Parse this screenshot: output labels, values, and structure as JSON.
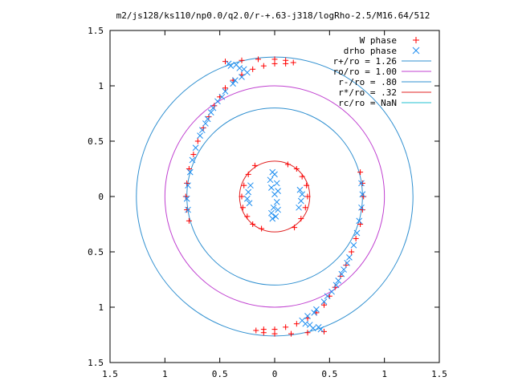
{
  "chart_data": {
    "type": "scatter",
    "title": "m2/js128/ks110/np0.0/q2.0/r-+.63-j318/logRho-2.5/M16.64/512",
    "xlim": [
      -1.5,
      1.5
    ],
    "ylim": [
      -1.5,
      1.5
    ],
    "x_ticks": [
      -1.5,
      -1.0,
      -0.5,
      0,
      0.5,
      1.0,
      1.5
    ],
    "x_tick_labels": [
      "1.5",
      "1",
      "0.5",
      "0",
      "0.5",
      "1",
      "1.5"
    ],
    "y_ticks": [
      1.5,
      1.0,
      0.5,
      0,
      -0.5,
      -1.0,
      -1.5
    ],
    "y_tick_labels": [
      "1.5",
      "1",
      "0.5",
      "0",
      "0.5",
      "1",
      "1.5"
    ],
    "grid": false,
    "legend_position": "top-right",
    "legend": [
      {
        "label": "W phase",
        "marker": "plus",
        "color": "#ff0000"
      },
      {
        "label": "drho phase",
        "marker": "cross",
        "color": "#1f8ef0"
      },
      {
        "label": "r+/ro = 1.26",
        "marker": "line",
        "color": "#2f8fd0"
      },
      {
        "label": "ro/ro = 1.00",
        "marker": "line",
        "color": "#c040d0"
      },
      {
        "label": "r-/ro = .80",
        "marker": "line",
        "color": "#2f8fd0"
      },
      {
        "label": "r*/ro = .32",
        "marker": "line",
        "color": "#e02020"
      },
      {
        "label": "rc/ro = NaN",
        "marker": "line",
        "color": "#20c0d0"
      }
    ],
    "circles": [
      {
        "name": "r+/ro",
        "radius": 1.26,
        "color": "#2f8fd0"
      },
      {
        "name": "ro/ro",
        "radius": 1.0,
        "color": "#c040d0"
      },
      {
        "name": "r-/ro",
        "radius": 0.8,
        "color": "#2f8fd0"
      },
      {
        "name": "r*/ro",
        "radius": 0.32,
        "color": "#e02020"
      }
    ],
    "series": [
      {
        "name": "W phase",
        "marker": "plus",
        "color": "#ff0000",
        "points": [
          [
            -0.45,
            1.22
          ],
          [
            -0.3,
            1.23
          ],
          [
            -0.15,
            1.24
          ],
          [
            0.0,
            1.24
          ],
          [
            0.1,
            1.23
          ],
          [
            0.17,
            1.21
          ],
          [
            0.1,
            1.2
          ],
          [
            0.0,
            1.2
          ],
          [
            -0.1,
            1.18
          ],
          [
            -0.2,
            1.15
          ],
          [
            -0.3,
            1.1
          ],
          [
            -0.38,
            1.05
          ],
          [
            -0.45,
            0.98
          ],
          [
            -0.5,
            0.9
          ],
          [
            -0.55,
            0.82
          ],
          [
            -0.6,
            0.72
          ],
          [
            -0.65,
            0.62
          ],
          [
            -0.7,
            0.5
          ],
          [
            -0.74,
            0.38
          ],
          [
            -0.78,
            0.25
          ],
          [
            -0.8,
            0.12
          ],
          [
            -0.81,
            0.0
          ],
          [
            -0.8,
            -0.12
          ],
          [
            -0.78,
            -0.22
          ],
          [
            0.45,
            -1.22
          ],
          [
            0.3,
            -1.23
          ],
          [
            0.15,
            -1.24
          ],
          [
            0.0,
            -1.24
          ],
          [
            -0.1,
            -1.23
          ],
          [
            -0.17,
            -1.21
          ],
          [
            -0.1,
            -1.2
          ],
          [
            0.0,
            -1.2
          ],
          [
            0.1,
            -1.18
          ],
          [
            0.2,
            -1.15
          ],
          [
            0.3,
            -1.1
          ],
          [
            0.38,
            -1.05
          ],
          [
            0.45,
            -0.98
          ],
          [
            0.5,
            -0.9
          ],
          [
            0.55,
            -0.82
          ],
          [
            0.6,
            -0.72
          ],
          [
            0.65,
            -0.62
          ],
          [
            0.7,
            -0.5
          ],
          [
            0.74,
            -0.38
          ],
          [
            0.78,
            -0.25
          ],
          [
            0.8,
            -0.12
          ],
          [
            0.81,
            0.0
          ],
          [
            0.8,
            0.12
          ],
          [
            0.78,
            0.22
          ],
          [
            -0.18,
            0.28
          ],
          [
            -0.24,
            0.2
          ],
          [
            -0.28,
            0.1
          ],
          [
            -0.3,
            0.0
          ],
          [
            -0.29,
            -0.1
          ],
          [
            -0.25,
            -0.18
          ],
          [
            -0.2,
            -0.25
          ],
          [
            -0.12,
            -0.29
          ],
          [
            0.18,
            -0.28
          ],
          [
            0.24,
            -0.2
          ],
          [
            0.28,
            -0.1
          ],
          [
            0.3,
            0.0
          ],
          [
            0.29,
            0.1
          ],
          [
            0.25,
            0.18
          ],
          [
            0.2,
            0.25
          ],
          [
            0.12,
            0.29
          ]
        ]
      },
      {
        "name": "drho phase",
        "marker": "cross",
        "color": "#1f8ef0",
        "points": [
          [
            -0.4,
            1.18
          ],
          [
            -0.32,
            1.16
          ],
          [
            -0.25,
            1.12
          ],
          [
            -0.3,
            1.08
          ],
          [
            -0.38,
            1.02
          ],
          [
            -0.45,
            0.95
          ],
          [
            -0.52,
            0.86
          ],
          [
            -0.58,
            0.76
          ],
          [
            -0.63,
            0.66
          ],
          [
            -0.68,
            0.55
          ],
          [
            -0.72,
            0.44
          ],
          [
            -0.75,
            0.33
          ],
          [
            -0.77,
            0.22
          ],
          [
            -0.79,
            0.1
          ],
          [
            -0.8,
            -0.02
          ],
          [
            -0.79,
            -0.12
          ],
          [
            -0.42,
            1.2
          ],
          [
            -0.35,
            1.19
          ],
          [
            -0.28,
            1.15
          ],
          [
            -0.36,
            1.05
          ],
          [
            -0.48,
            0.9
          ],
          [
            -0.56,
            0.8
          ],
          [
            -0.61,
            0.7
          ],
          [
            -0.66,
            0.6
          ],
          [
            0.4,
            -1.18
          ],
          [
            0.32,
            -1.16
          ],
          [
            0.25,
            -1.12
          ],
          [
            0.3,
            -1.08
          ],
          [
            0.38,
            -1.02
          ],
          [
            0.45,
            -0.95
          ],
          [
            0.52,
            -0.86
          ],
          [
            0.58,
            -0.76
          ],
          [
            0.63,
            -0.66
          ],
          [
            0.68,
            -0.55
          ],
          [
            0.72,
            -0.44
          ],
          [
            0.75,
            -0.33
          ],
          [
            0.77,
            -0.22
          ],
          [
            0.79,
            -0.1
          ],
          [
            0.8,
            0.02
          ],
          [
            0.79,
            0.12
          ],
          [
            0.42,
            -1.2
          ],
          [
            0.35,
            -1.19
          ],
          [
            0.28,
            -1.15
          ],
          [
            0.36,
            -1.05
          ],
          [
            0.48,
            -0.9
          ],
          [
            0.56,
            -0.8
          ],
          [
            0.61,
            -0.7
          ],
          [
            0.66,
            -0.6
          ],
          [
            -0.02,
            0.22
          ],
          [
            -0.04,
            0.15
          ],
          [
            -0.03,
            0.08
          ],
          [
            0.0,
            0.02
          ],
          [
            0.02,
            -0.05
          ],
          [
            0.03,
            -0.12
          ],
          [
            0.01,
            -0.18
          ],
          [
            -0.02,
            -0.2
          ],
          [
            -0.22,
            0.1
          ],
          [
            -0.24,
            0.04
          ],
          [
            -0.25,
            -0.02
          ],
          [
            -0.23,
            -0.06
          ],
          [
            0.22,
            -0.1
          ],
          [
            0.24,
            -0.04
          ],
          [
            0.25,
            0.02
          ],
          [
            0.23,
            0.06
          ],
          [
            0.0,
            0.2
          ],
          [
            0.02,
            0.12
          ],
          [
            0.03,
            0.05
          ],
          [
            -0.01,
            -0.1
          ],
          [
            -0.03,
            -0.15
          ]
        ]
      }
    ]
  }
}
